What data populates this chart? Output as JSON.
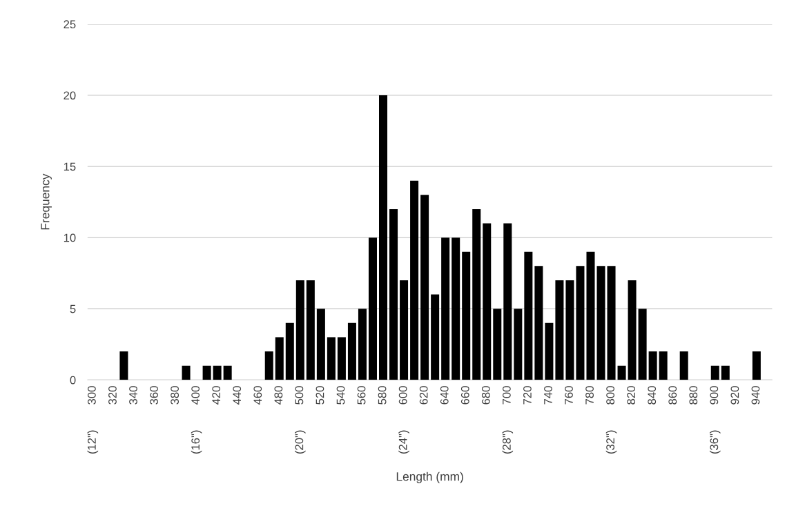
{
  "chart_data": {
    "type": "bar",
    "xlabel": "Length (mm)",
    "ylabel": "Frequency",
    "color": "#000000",
    "x": [
      300,
      310,
      320,
      330,
      340,
      350,
      360,
      370,
      380,
      390,
      400,
      410,
      420,
      430,
      440,
      450,
      460,
      470,
      480,
      490,
      500,
      510,
      520,
      530,
      540,
      550,
      560,
      570,
      580,
      590,
      600,
      610,
      620,
      630,
      640,
      650,
      660,
      670,
      680,
      690,
      700,
      710,
      720,
      730,
      740,
      750,
      760,
      770,
      780,
      790,
      800,
      810,
      820,
      830,
      840,
      850,
      860,
      870,
      880,
      890,
      900,
      910,
      920,
      930,
      940
    ],
    "values": [
      0,
      0,
      0,
      2,
      0,
      0,
      0,
      0,
      0,
      1,
      0,
      1,
      1,
      1,
      0,
      0,
      0,
      2,
      3,
      4,
      7,
      7,
      5,
      3,
      3,
      4,
      5,
      10,
      20,
      12,
      7,
      14,
      13,
      6,
      10,
      10,
      9,
      12,
      11,
      5,
      11,
      5,
      9,
      8,
      4,
      7,
      7,
      8,
      9,
      8,
      8,
      1,
      7,
      5,
      2,
      2,
      0,
      2,
      0,
      0,
      1,
      1,
      0,
      0,
      2
    ],
    "xlim": [
      295,
      955
    ],
    "xticks": [
      300,
      320,
      340,
      360,
      380,
      400,
      420,
      440,
      460,
      480,
      500,
      520,
      540,
      560,
      580,
      600,
      620,
      640,
      660,
      680,
      700,
      720,
      740,
      760,
      780,
      800,
      820,
      840,
      860,
      880,
      900,
      920,
      940
    ],
    "x2lim": [
      11.8,
      38.2
    ],
    "x2ticks": [
      {
        "value": 12,
        "label": "(12\")"
      },
      {
        "value": 16,
        "label": "(16\")"
      },
      {
        "value": 20,
        "label": "(20\")"
      },
      {
        "value": 24,
        "label": "(24\")"
      },
      {
        "value": 28,
        "label": "(28\")"
      },
      {
        "value": 32,
        "label": "(32\")"
      },
      {
        "value": 36,
        "label": "(36\")"
      }
    ],
    "ylim": [
      0,
      25
    ],
    "yticks": [
      0,
      5,
      10,
      15,
      20,
      25
    ],
    "grid": "y"
  }
}
